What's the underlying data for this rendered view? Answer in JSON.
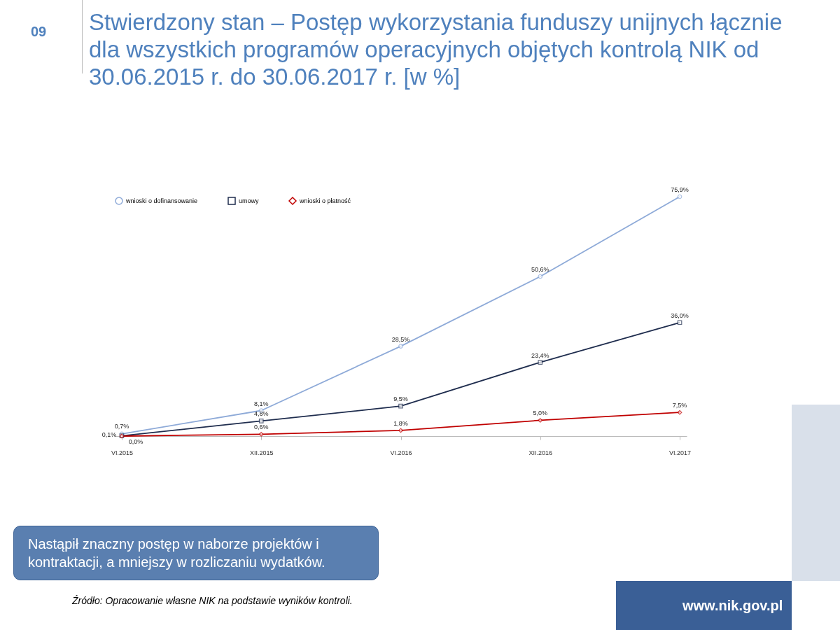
{
  "chart_data": {
    "type": "line",
    "title": "Stwierdzony stan – Postęp wykorzystania funduszy unijnych łącznie dla wszystkich programów operacyjnych objętych kontrolą NIK od 30.06.2015 r. do 30.06.2017 r. [w %]",
    "categories": [
      "VI.2015",
      "XII.2015",
      "VI.2016",
      "XII.2016",
      "VI.2017"
    ],
    "series": [
      {
        "name": "wnioski o dofinansowanie",
        "color": "#8eaad8",
        "marker": "circle",
        "values": [
          0.7,
          8.1,
          28.5,
          50.6,
          75.9
        ],
        "value_labels": [
          "0,7%",
          "8,1%",
          "28,5%",
          "50,6%",
          "75,9%"
        ]
      },
      {
        "name": "umowy",
        "color": "#1f2d4e",
        "marker": "square",
        "values": [
          0.1,
          4.8,
          9.5,
          23.4,
          36.0
        ],
        "value_labels": [
          "0,1%",
          "4,8%",
          "9,5%",
          "23,4%",
          "36,0%"
        ]
      },
      {
        "name": "wnioski o płatność",
        "color": "#c00000",
        "marker": "diamond",
        "values": [
          0.0,
          0.6,
          1.8,
          5.0,
          7.5
        ],
        "value_labels": [
          "0,0%",
          "0,6%",
          "1,8%",
          "5,0%",
          "7,5%"
        ]
      }
    ],
    "legend": "top left",
    "grid": false,
    "annotations": [
      "09",
      "Nastąpił znaczny postęp w naborze projektów i kontraktacji, a mniejszy w rozliczaniu wydatków.",
      "Źródło: Opracowanie własne NIK na podstawie wyników kontroli.",
      "www.nik.gov.pl"
    ]
  }
}
